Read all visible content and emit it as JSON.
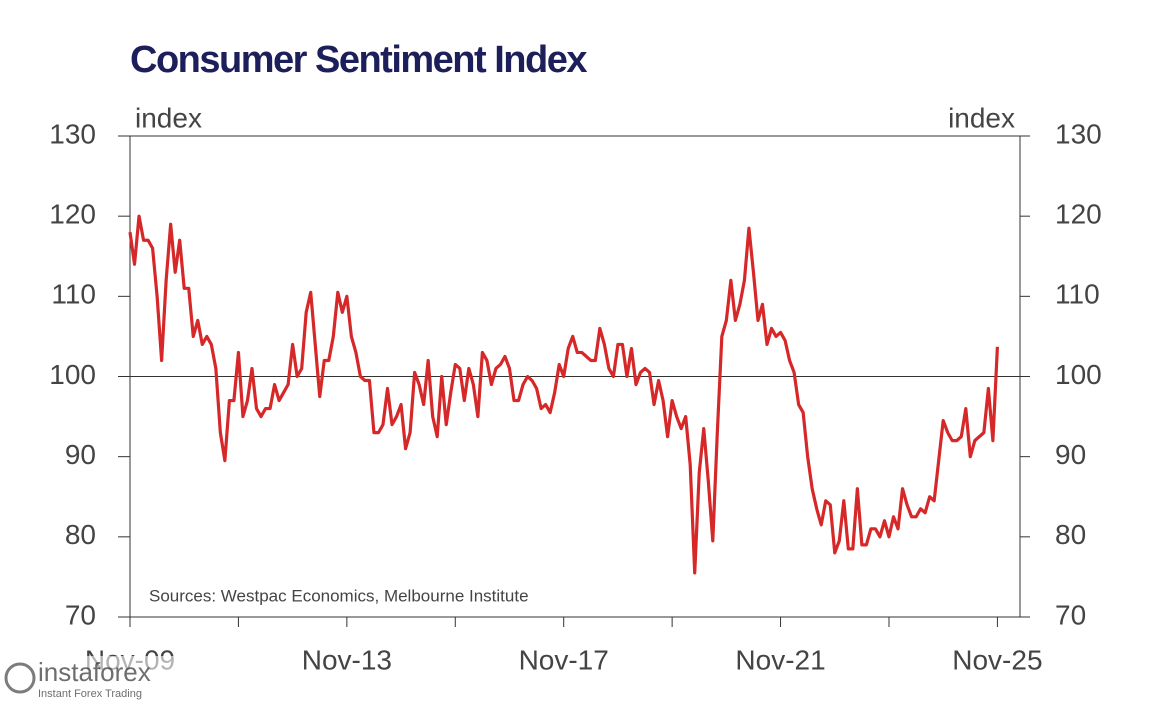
{
  "chart_data": {
    "type": "line",
    "title": "Consumer Sentiment Index",
    "ylabel": "index",
    "y2label": "index",
    "note": "Sources: Westpac Economics, Melbourne Institute",
    "watermark": "instaforex",
    "watermark_tagline": "Instant Forex Trading",
    "xlim": [
      "Nov-09",
      "Apr-26"
    ],
    "xticks": [
      "Nov-09",
      "Nov-13",
      "Nov-17",
      "Nov-21",
      "Nov-25"
    ],
    "xminorticks": [
      "Nov-11",
      "Nov-15",
      "Nov-19",
      "Nov-23"
    ],
    "ylim": [
      70,
      130
    ],
    "yticks": [
      70,
      80,
      90,
      100,
      110,
      120,
      130
    ],
    "y2lim": [
      70,
      130
    ],
    "y2ticks": [
      70,
      80,
      90,
      100,
      110,
      120,
      130
    ],
    "reference_line": 100,
    "x": [
      "Nov-09",
      "Dec-09",
      "Jan-10",
      "Feb-10",
      "Mar-10",
      "Apr-10",
      "May-10",
      "Jun-10",
      "Jul-10",
      "Aug-10",
      "Sep-10",
      "Oct-10",
      "Nov-10",
      "Dec-10",
      "Jan-11",
      "Feb-11",
      "Mar-11",
      "Apr-11",
      "May-11",
      "Jun-11",
      "Jul-11",
      "Aug-11",
      "Sep-11",
      "Oct-11",
      "Nov-11",
      "Dec-11",
      "Jan-12",
      "Feb-12",
      "Mar-12",
      "Apr-12",
      "May-12",
      "Jun-12",
      "Jul-12",
      "Aug-12",
      "Sep-12",
      "Oct-12",
      "Nov-12",
      "Dec-12",
      "Jan-13",
      "Feb-13",
      "Mar-13",
      "Apr-13",
      "May-13",
      "Jun-13",
      "Jul-13",
      "Aug-13",
      "Sep-13",
      "Oct-13",
      "Nov-13",
      "Dec-13",
      "Jan-14",
      "Feb-14",
      "Mar-14",
      "Apr-14",
      "May-14",
      "Jun-14",
      "Jul-14",
      "Aug-14",
      "Sep-14",
      "Oct-14",
      "Nov-14",
      "Dec-14",
      "Jan-15",
      "Feb-15",
      "Mar-15",
      "Apr-15",
      "May-15",
      "Jun-15",
      "Jul-15",
      "Aug-15",
      "Sep-15",
      "Oct-15",
      "Nov-15",
      "Dec-15",
      "Jan-16",
      "Feb-16",
      "Mar-16",
      "Apr-16",
      "May-16",
      "Jun-16",
      "Jul-16",
      "Aug-16",
      "Sep-16",
      "Oct-16",
      "Nov-16",
      "Dec-16",
      "Jan-17",
      "Feb-17",
      "Mar-17",
      "Apr-17",
      "May-17",
      "Jun-17",
      "Jul-17",
      "Aug-17",
      "Sep-17",
      "Oct-17",
      "Nov-17",
      "Dec-17",
      "Jan-18",
      "Feb-18",
      "Mar-18",
      "Apr-18",
      "May-18",
      "Jun-18",
      "Jul-18",
      "Aug-18",
      "Sep-18",
      "Oct-18",
      "Nov-18",
      "Dec-18",
      "Jan-19",
      "Feb-19",
      "Mar-19",
      "Apr-19",
      "May-19",
      "Jun-19",
      "Jul-19",
      "Aug-19",
      "Sep-19",
      "Oct-19",
      "Nov-19",
      "Dec-19",
      "Jan-20",
      "Feb-20",
      "Mar-20",
      "Apr-20",
      "May-20",
      "Jun-20",
      "Jul-20",
      "Aug-20",
      "Sep-20",
      "Oct-20",
      "Nov-20",
      "Dec-20",
      "Jan-21",
      "Feb-21",
      "Mar-21",
      "Apr-21",
      "May-21",
      "Jun-21",
      "Jul-21",
      "Aug-21",
      "Sep-21",
      "Oct-21",
      "Nov-21",
      "Dec-21",
      "Jan-22",
      "Feb-22",
      "Mar-22",
      "Apr-22",
      "May-22",
      "Jun-22",
      "Jul-22",
      "Aug-22",
      "Sep-22",
      "Oct-22",
      "Nov-22",
      "Dec-22",
      "Jan-23",
      "Feb-23",
      "Mar-23",
      "Apr-23",
      "May-23",
      "Jun-23",
      "Jul-23",
      "Aug-23",
      "Sep-23",
      "Oct-23",
      "Nov-23",
      "Dec-23",
      "Jan-24",
      "Feb-24",
      "Mar-24",
      "Apr-24",
      "May-24",
      "Jun-24",
      "Jul-24",
      "Aug-24",
      "Sep-24",
      "Oct-24",
      "Nov-24",
      "Dec-24",
      "Jan-25",
      "Feb-25",
      "Mar-25",
      "Apr-25",
      "May-25",
      "Jun-25",
      "Jul-25",
      "Aug-25",
      "Sep-25",
      "Oct-25",
      "Nov-25"
    ],
    "series": [
      {
        "name": "Consumer Sentiment Index",
        "color": "#d62828",
        "values": [
          118,
          114,
          120,
          117,
          117,
          116,
          110,
          102,
          112,
          119,
          113,
          117,
          111,
          111,
          105,
          107,
          104,
          105,
          104,
          101,
          93,
          89.5,
          97,
          97,
          103,
          95,
          97,
          101,
          96,
          95,
          96,
          96,
          99,
          97,
          98,
          99,
          104,
          100,
          101,
          108,
          110.5,
          104,
          97.5,
          102,
          102,
          105,
          110.5,
          108,
          110,
          105,
          103,
          100,
          99.5,
          99.5,
          93,
          93,
          94,
          98.5,
          94,
          95,
          96.5,
          91,
          93,
          100.5,
          99,
          96.5,
          102,
          95,
          92.5,
          100,
          94,
          98,
          101.5,
          101,
          97,
          101,
          99,
          95,
          103,
          102,
          99,
          101,
          101.5,
          102.5,
          101,
          97,
          97,
          99,
          100,
          99.5,
          98.5,
          96,
          96.5,
          95.5,
          98,
          101.5,
          100,
          103.5,
          105,
          103,
          103,
          102.5,
          102,
          102,
          106,
          104,
          101,
          100,
          104,
          104,
          100,
          103.5,
          99,
          100.5,
          101,
          100.5,
          96.5,
          99.5,
          97,
          92.5,
          97,
          95,
          93.5,
          95,
          89,
          75.5,
          88,
          93.5,
          87,
          79.5,
          93,
          105,
          107,
          112,
          107,
          109,
          112,
          118.5,
          113,
          107,
          109,
          104,
          106,
          105,
          105.5,
          104.5,
          102,
          100.5,
          96.5,
          95.5,
          90,
          86,
          83.5,
          81.5,
          84.5,
          84,
          78,
          79.5,
          84.5,
          78.5,
          78.5,
          86,
          79,
          79,
          81,
          81,
          80,
          82,
          80,
          82.5,
          81,
          86,
          84,
          82.5,
          82.5,
          83.5,
          83,
          85,
          84.5,
          89.5,
          94.5,
          93,
          92,
          92,
          92.5,
          96,
          90,
          92,
          92.5,
          93,
          98.5,
          92,
          103.7
        ]
      }
    ]
  }
}
